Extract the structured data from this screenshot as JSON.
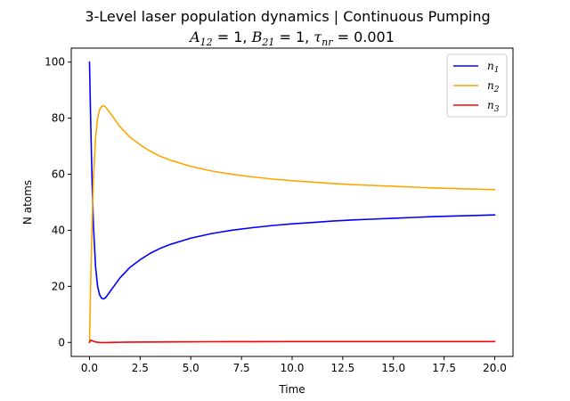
{
  "chart_data": {
    "type": "line",
    "title": "3-Level laser population dynamics | Continuous Pumping",
    "subtitle": "A12 = 1, B21 = 1, τnr = 0.001",
    "subtitle_parts": [
      {
        "sym": "A",
        "sub": "12",
        "rest": " = 1, "
      },
      {
        "sym": "B",
        "sub": "21",
        "rest": " = 1, "
      },
      {
        "sym": "τ",
        "sub": "nr",
        "rest": " = 0.001"
      }
    ],
    "xlabel": "Time",
    "ylabel": "N atoms",
    "xlim": [
      -0.9,
      20.9
    ],
    "ylim": [
      -5,
      105
    ],
    "xticks": [
      0.0,
      2.5,
      5.0,
      7.5,
      10.0,
      12.5,
      15.0,
      17.5,
      20.0
    ],
    "xtick_labels": [
      "0.0",
      "2.5",
      "5.0",
      "7.5",
      "10.0",
      "12.5",
      "15.0",
      "17.5",
      "20.0"
    ],
    "yticks": [
      0,
      20,
      40,
      60,
      80,
      100
    ],
    "ytick_labels": [
      "0",
      "20",
      "40",
      "60",
      "80",
      "100"
    ],
    "grid": false,
    "legend_position": "top-right",
    "series": [
      {
        "name": "n1",
        "label_symbol": "n",
        "label_sub": "1",
        "color": "#0000ff",
        "x": [
          0.0,
          0.05,
          0.1,
          0.15,
          0.2,
          0.3,
          0.4,
          0.5,
          0.6,
          0.7,
          0.8,
          0.9,
          1.0,
          1.25,
          1.5,
          2.0,
          2.5,
          3.0,
          3.5,
          4.0,
          5.0,
          6.0,
          7.0,
          8.0,
          9.0,
          10.0,
          11.0,
          12.0,
          13.0,
          14.0,
          15.0,
          16.0,
          17.0,
          18.0,
          19.0,
          20.0
        ],
        "y": [
          100,
          82,
          66,
          52,
          41,
          27,
          20,
          17,
          15.8,
          15.5,
          16.0,
          17.0,
          18.0,
          20.5,
          23.0,
          26.8,
          29.5,
          31.8,
          33.6,
          35.0,
          37.2,
          38.8,
          40.0,
          40.9,
          41.7,
          42.3,
          42.8,
          43.3,
          43.7,
          44.0,
          44.3,
          44.6,
          44.9,
          45.1,
          45.3,
          45.5
        ]
      },
      {
        "name": "n2",
        "label_symbol": "n",
        "label_sub": "2",
        "color": "#ffa500",
        "x": [
          0.0,
          0.05,
          0.1,
          0.15,
          0.2,
          0.3,
          0.4,
          0.5,
          0.6,
          0.7,
          0.8,
          0.9,
          1.0,
          1.25,
          1.5,
          2.0,
          2.5,
          3.0,
          3.5,
          4.0,
          5.0,
          6.0,
          7.0,
          8.0,
          9.0,
          10.0,
          11.0,
          12.0,
          13.0,
          14.0,
          15.0,
          16.0,
          17.0,
          18.0,
          19.0,
          20.0
        ],
        "y": [
          0,
          18,
          34,
          48,
          59,
          73,
          80,
          83,
          84.2,
          84.5,
          84.0,
          83.0,
          82.0,
          79.5,
          77.0,
          73.2,
          70.5,
          68.2,
          66.4,
          65.0,
          62.8,
          61.2,
          60.0,
          59.1,
          58.3,
          57.7,
          57.2,
          56.7,
          56.3,
          56.0,
          55.7,
          55.4,
          55.1,
          54.9,
          54.7,
          54.5
        ]
      },
      {
        "name": "n3",
        "label_symbol": "n",
        "label_sub": "3",
        "color": "#ff0000",
        "x": [
          0.0,
          0.05,
          0.1,
          0.2,
          0.3,
          0.5,
          0.7,
          1.0,
          2.0,
          4.0,
          6.0,
          8.0,
          10.0,
          12.0,
          14.0,
          16.0,
          18.0,
          20.0
        ],
        "y": [
          0,
          0.8,
          0.7,
          0.4,
          0.15,
          0.0,
          -0.05,
          0.0,
          0.1,
          0.2,
          0.25,
          0.28,
          0.3,
          0.3,
          0.3,
          0.3,
          0.3,
          0.3
        ]
      }
    ]
  }
}
